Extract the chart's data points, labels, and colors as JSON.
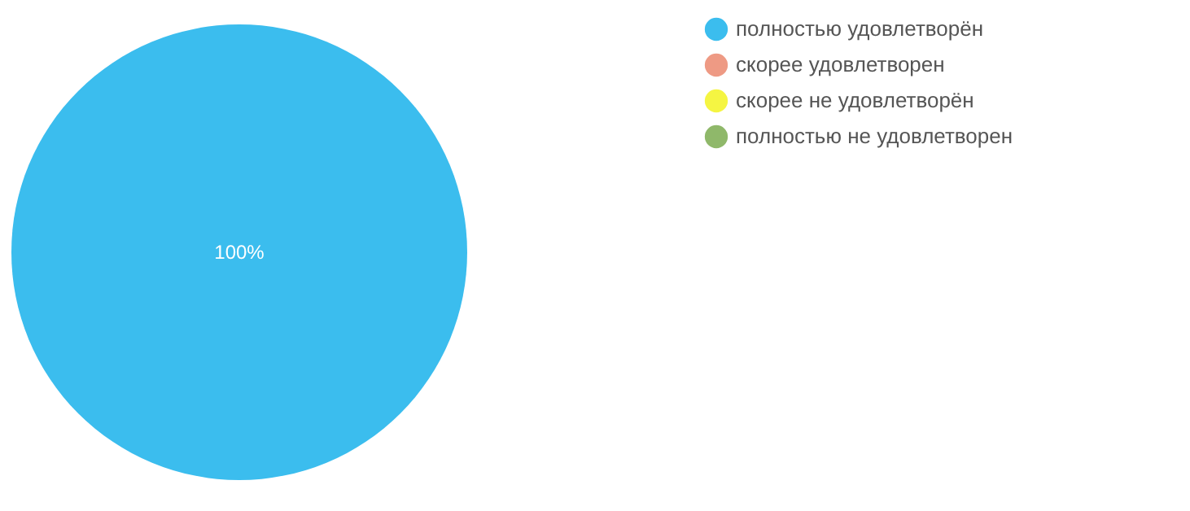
{
  "chart_data": {
    "type": "pie",
    "categories": [
      "полностью удовлетворён",
      "скорее удовлетворен",
      "скорее не удовлетворён",
      "полностью не удовлетворен"
    ],
    "values": [
      100,
      0,
      0,
      0
    ],
    "colors": [
      "#3bbdee",
      "#ee9a84",
      "#f5f542",
      "#8fb86a"
    ],
    "value_labels": [
      "100%",
      null,
      null,
      null
    ],
    "legend": "right"
  }
}
